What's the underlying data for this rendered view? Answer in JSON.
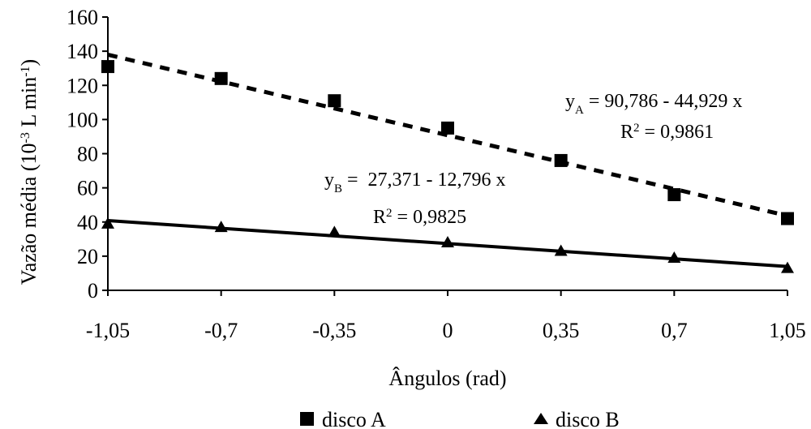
{
  "chart_data": {
    "type": "scatter",
    "xlabel": "Ângulos (rad)",
    "ylabel_main": "Vazão média",
    "ylabel_unit_parts": [
      "(10",
      "-3",
      " L min",
      "-1",
      ")"
    ],
    "x_ticks": [
      "-1,05",
      "-0,7",
      "-0,35",
      "0",
      "0,35",
      "0,7",
      "1,05"
    ],
    "x_tick_values": [
      -1.05,
      -0.7,
      -0.35,
      0,
      0.35,
      0.7,
      1.05
    ],
    "y_ticks": [
      "0",
      "20",
      "40",
      "60",
      "80",
      "100",
      "120",
      "140",
      "160"
    ],
    "xlim": [
      -1.05,
      1.05
    ],
    "ylim": [
      0,
      160
    ],
    "grid": false,
    "legend_position": "bottom",
    "colors": {
      "series": "#000000"
    },
    "series": [
      {
        "name": "disco A",
        "marker": "square",
        "x": [
          -1.05,
          -0.7,
          -0.35,
          0,
          0.35,
          0.7,
          1.05
        ],
        "y": [
          131,
          124,
          111,
          95,
          76,
          56,
          42
        ],
        "trend": {
          "intercept": 90.786,
          "slope": -44.929,
          "style": "dashed"
        }
      },
      {
        "name": "disco B",
        "marker": "triangle",
        "x": [
          -1.05,
          -0.7,
          -0.35,
          0,
          0.35,
          0.7,
          1.05
        ],
        "y": [
          39,
          37,
          34,
          28,
          23,
          19,
          13
        ],
        "trend": {
          "intercept": 27.371,
          "slope": -12.796,
          "style": "solid"
        }
      }
    ],
    "annotations": [
      {
        "var": "y",
        "sub": "A",
        "rest": " = 90,786 - 44,929 x",
        "r2": "0,9861"
      },
      {
        "var": "y",
        "sub": "B",
        "rest": " =  27,371 - 12,796 x",
        "r2": "0,9825"
      }
    ]
  }
}
